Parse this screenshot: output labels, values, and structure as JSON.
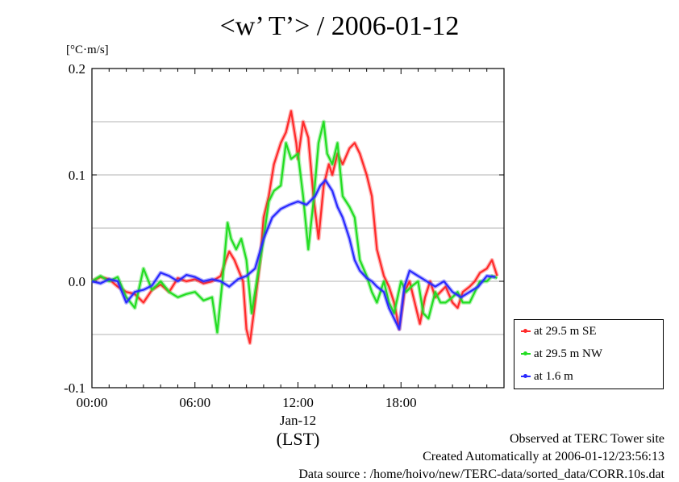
{
  "title": "<w’ T’> / 2006-01-12",
  "unit_label": "[°C·m/s]",
  "footer": {
    "line1": "Observed at TERC Tower site",
    "line2": "Created Automatically at 2006-01-12/23:56:13",
    "line3": "Data source : /home/hoivo/new/TERC-data/sorted_data/CORR.10s.dat"
  },
  "chart_data": {
    "type": "line",
    "title": "<w’ T’> / 2006-01-12",
    "ylabel": "[°C·m/s]",
    "xlabel": "(LST)",
    "date_label": "Jan-12",
    "xlim": [
      0,
      24
    ],
    "ylim": [
      -0.1,
      0.2
    ],
    "x_ticks": [
      {
        "value": 0,
        "label": "00:00"
      },
      {
        "value": 6,
        "label": "06:00"
      },
      {
        "value": 12,
        "label": "12:00"
      },
      {
        "value": 18,
        "label": "18:00"
      }
    ],
    "y_ticks": [
      {
        "value": -0.1,
        "label": "-0.1"
      },
      {
        "value": 0.0,
        "label": "0.0"
      },
      {
        "value": 0.1,
        "label": "0.1"
      },
      {
        "value": 0.2,
        "label": "0.2"
      }
    ],
    "gridlines_y": [
      -0.05,
      0.0,
      0.05,
      0.1,
      0.15
    ],
    "legend_position": "bottom-right outside",
    "series": [
      {
        "name": "at 29.5 m SE",
        "color": "#ff2a2a",
        "x": [
          0,
          0.5,
          1,
          1.5,
          2,
          2.5,
          3,
          3.5,
          4,
          4.5,
          5,
          5.5,
          6,
          6.5,
          7,
          7.5,
          7.8,
          8,
          8.3,
          8.5,
          8.8,
          9,
          9.2,
          9.5,
          9.8,
          10,
          10.3,
          10.6,
          11,
          11.3,
          11.6,
          11.9,
          12,
          12.3,
          12.6,
          12.9,
          13.2,
          13.5,
          13.8,
          14,
          14.3,
          14.6,
          15,
          15.3,
          15.6,
          16,
          16.3,
          16.6,
          17,
          17.3,
          17.6,
          17.9,
          18.2,
          18.5,
          18.8,
          19.1,
          19.4,
          19.7,
          20,
          20.3,
          20.6,
          21,
          21.3,
          21.6,
          22,
          22.3,
          22.6,
          23,
          23.3,
          23.6
        ],
        "y": [
          0.0,
          0.004,
          0.002,
          -0.005,
          -0.01,
          -0.012,
          -0.02,
          -0.008,
          -0.003,
          -0.01,
          0.003,
          0.0,
          0.002,
          -0.002,
          0.0,
          0.005,
          0.02,
          0.028,
          0.02,
          0.012,
          0.0,
          -0.045,
          -0.058,
          -0.02,
          0.02,
          0.06,
          0.08,
          0.11,
          0.13,
          0.14,
          0.16,
          0.13,
          0.115,
          0.15,
          0.135,
          0.08,
          0.04,
          0.09,
          0.11,
          0.1,
          0.12,
          0.11,
          0.125,
          0.13,
          0.12,
          0.1,
          0.08,
          0.03,
          0.005,
          -0.005,
          -0.02,
          -0.045,
          -0.01,
          0.0,
          -0.02,
          -0.04,
          -0.015,
          0.0,
          -0.015,
          -0.01,
          -0.005,
          -0.02,
          -0.025,
          -0.01,
          -0.005,
          0.0,
          0.008,
          0.012,
          0.02,
          0.005
        ]
      },
      {
        "name": "at 29.5 m NW",
        "color": "#22dd22",
        "x": [
          0,
          0.5,
          1,
          1.5,
          2,
          2.5,
          3,
          3.5,
          4,
          4.5,
          5,
          5.5,
          6,
          6.5,
          7,
          7.3,
          7.6,
          7.9,
          8.1,
          8.4,
          8.7,
          9,
          9.3,
          9.6,
          10,
          10.3,
          10.6,
          11,
          11.3,
          11.6,
          12,
          12.3,
          12.6,
          12.9,
          13.2,
          13.5,
          13.7,
          14,
          14.3,
          14.6,
          15,
          15.3,
          15.6,
          16,
          16.3,
          16.6,
          17,
          17.3,
          17.6,
          18,
          18.3,
          18.6,
          19,
          19.3,
          19.6,
          20,
          20.3,
          20.6,
          21,
          21.3,
          21.6,
          22,
          22.3,
          22.6,
          23,
          23.3,
          23.6
        ],
        "y": [
          0.0,
          0.005,
          0.0,
          0.004,
          -0.015,
          -0.025,
          0.012,
          -0.008,
          0.0,
          -0.01,
          -0.015,
          -0.012,
          -0.01,
          -0.018,
          -0.015,
          -0.048,
          0.0,
          0.055,
          0.04,
          0.03,
          0.04,
          0.02,
          -0.03,
          0.0,
          0.04,
          0.075,
          0.085,
          0.09,
          0.13,
          0.115,
          0.12,
          0.08,
          0.03,
          0.075,
          0.13,
          0.15,
          0.12,
          0.11,
          0.13,
          0.08,
          0.07,
          0.06,
          0.02,
          0.005,
          -0.01,
          -0.02,
          0.0,
          -0.02,
          -0.03,
          0.0,
          -0.01,
          -0.005,
          0.0,
          -0.03,
          -0.035,
          -0.01,
          -0.02,
          -0.02,
          -0.015,
          -0.01,
          -0.02,
          -0.02,
          -0.01,
          0.0,
          0.0,
          0.005,
          0.003
        ]
      },
      {
        "name": "at 1.6 m",
        "color": "#2a2aff",
        "x": [
          0,
          0.5,
          1,
          1.5,
          2,
          2.5,
          3,
          3.5,
          4,
          4.5,
          5,
          5.5,
          6,
          6.5,
          7,
          7.5,
          8,
          8.5,
          9,
          9.5,
          10,
          10.5,
          11,
          11.5,
          12,
          12.5,
          13,
          13.3,
          13.6,
          14,
          14.3,
          14.6,
          15,
          15.3,
          15.6,
          16,
          16.3,
          16.6,
          17,
          17.3,
          17.6,
          17.9,
          18.2,
          18.5,
          19,
          19.5,
          20,
          20.5,
          21,
          21.5,
          22,
          22.5,
          23,
          23.5
        ],
        "y": [
          0.0,
          -0.002,
          0.002,
          0.0,
          -0.02,
          -0.01,
          -0.008,
          -0.004,
          0.008,
          0.005,
          0.0,
          0.006,
          0.004,
          0.0,
          0.002,
          0.0,
          -0.005,
          0.002,
          0.005,
          0.012,
          0.04,
          0.06,
          0.068,
          0.072,
          0.075,
          0.072,
          0.08,
          0.09,
          0.095,
          0.085,
          0.07,
          0.06,
          0.04,
          0.02,
          0.01,
          0.003,
          0.0,
          -0.005,
          -0.01,
          -0.025,
          -0.035,
          -0.045,
          -0.005,
          0.01,
          0.005,
          0.0,
          -0.005,
          0.0,
          -0.01,
          -0.015,
          -0.01,
          -0.005,
          0.005,
          0.004
        ]
      }
    ]
  }
}
